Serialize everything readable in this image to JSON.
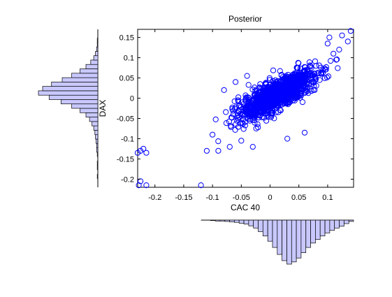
{
  "chart_data": {
    "type": "scatter",
    "title": "Posterior",
    "xlabel": "CAC 40",
    "ylabel": "DAX",
    "xlim": [
      -0.23,
      0.145
    ],
    "ylim": [
      -0.22,
      0.17
    ],
    "grid": false,
    "marker": "open-circle",
    "color": "#0000ff",
    "xticks": [
      -0.2,
      -0.15,
      -0.1,
      -0.05,
      0,
      0.05,
      0.1
    ],
    "xtick_labels": [
      "-0.2",
      "-0.15",
      "-0.1",
      "-0.05",
      "0",
      "0.05",
      "0.1"
    ],
    "yticks": [
      0.15,
      0.1,
      0.05,
      0,
      -0.05,
      -0.1,
      -0.15,
      -0.2
    ],
    "ytick_labels": [
      "0.15",
      "0.1",
      "0.05",
      "0",
      "-0.05",
      "-0.1",
      "-0.15",
      "-0.2"
    ],
    "notable_points": [
      {
        "x": 0.14,
        "y": 0.166
      },
      {
        "x": 0.125,
        "y": 0.155
      },
      {
        "x": 0.103,
        "y": 0.15
      },
      {
        "x": 0.11,
        "y": 0.11
      },
      {
        "x": 0.08,
        "y": 0.08
      },
      {
        "x": -0.1,
        "y": -0.09
      },
      {
        "x": -0.11,
        "y": -0.13
      },
      {
        "x": -0.09,
        "y": -0.13
      },
      {
        "x": -0.22,
        "y": -0.125
      },
      {
        "x": -0.225,
        "y": -0.13
      },
      {
        "x": -0.23,
        "y": -0.135
      },
      {
        "x": -0.215,
        "y": -0.135
      },
      {
        "x": -0.225,
        "y": -0.205
      },
      {
        "x": -0.228,
        "y": -0.215
      },
      {
        "x": -0.215,
        "y": -0.215
      },
      {
        "x": -0.12,
        "y": -0.215
      },
      {
        "x": -0.03,
        "y": -0.12
      },
      {
        "x": 0.06,
        "y": -0.085
      },
      {
        "x": -0.08,
        "y": 0.02
      },
      {
        "x": -0.06,
        "y": 0.04
      },
      {
        "x": -0.04,
        "y": 0.055
      },
      {
        "x": 0.12,
        "y": 0.12
      },
      {
        "x": 0.135,
        "y": 0.14
      },
      {
        "x": 0.1,
        "y": 0.135
      },
      {
        "x": 0.115,
        "y": 0.095
      },
      {
        "x": 0.03,
        "y": -0.1
      },
      {
        "x": -0.07,
        "y": -0.12
      },
      {
        "x": -0.05,
        "y": -0.105
      }
    ],
    "marginal_x": {
      "type": "bar",
      "orientation": "inverted",
      "range": [
        -0.12,
        0.145
      ],
      "color": "#c8c8ff",
      "values": [
        0.0,
        0.0,
        0.01,
        0.02,
        0.02,
        0.03,
        0.04,
        0.05,
        0.07,
        0.09,
        0.13,
        0.18,
        0.26,
        0.36,
        0.48,
        0.62,
        0.78,
        0.92,
        1.0,
        0.95,
        0.86,
        0.74,
        0.62,
        0.52,
        0.44,
        0.36,
        0.29,
        0.23,
        0.18,
        0.14,
        0.08,
        0.03
      ]
    },
    "marginal_y": {
      "type": "bar",
      "orientation": "horizontal-leftward",
      "range": [
        -0.22,
        0.17
      ],
      "color": "#c8c8ff",
      "values": [
        0.0,
        0.0,
        0.01,
        0.0,
        0.01,
        0.01,
        0.0,
        0.01,
        0.02,
        0.02,
        0.03,
        0.04,
        0.05,
        0.07,
        0.1,
        0.14,
        0.2,
        0.3,
        0.44,
        0.62,
        0.82,
        1.0,
        0.93,
        0.78,
        0.6,
        0.44,
        0.3,
        0.2,
        0.12,
        0.07,
        0.04,
        0.02,
        0.01,
        0.01,
        0.0,
        0.0
      ]
    }
  }
}
